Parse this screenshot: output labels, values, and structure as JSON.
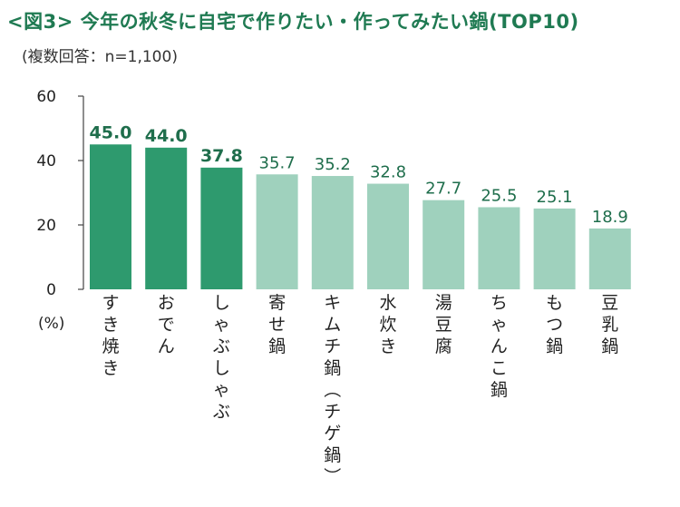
{
  "chart_data": {
    "type": "bar",
    "title": "<図3> 今年の秋冬に自宅で作りたい・作ってみたい鍋(TOP10)",
    "subtitle": "(複数回答：n=1,100)",
    "ylabel": "(%)",
    "ylim": [
      0,
      60
    ],
    "yticks": [
      0,
      20,
      40,
      60
    ],
    "categories": [
      "すき焼き",
      "おでん",
      "しゃぶしゃぶ",
      "寄せ鍋",
      "キムチ鍋（チゲ鍋）",
      "水炊き",
      "湯豆腐",
      "ちゃんこ鍋",
      "もつ鍋",
      "豆乳鍋"
    ],
    "values": [
      45.0,
      44.0,
      37.8,
      35.7,
      35.2,
      32.8,
      27.7,
      25.5,
      25.1,
      18.9
    ],
    "value_labels": [
      "45.0",
      "44.0",
      "37.8",
      "35.7",
      "35.2",
      "32.8",
      "27.7",
      "25.5",
      "25.1",
      "18.9"
    ],
    "highlight_count": 3,
    "colors": {
      "highlight": "#2e9a6e",
      "normal": "#9fd1bd",
      "label": "#1f6e4c",
      "title": "#1f7a52"
    },
    "grid": false,
    "legend": "none"
  }
}
